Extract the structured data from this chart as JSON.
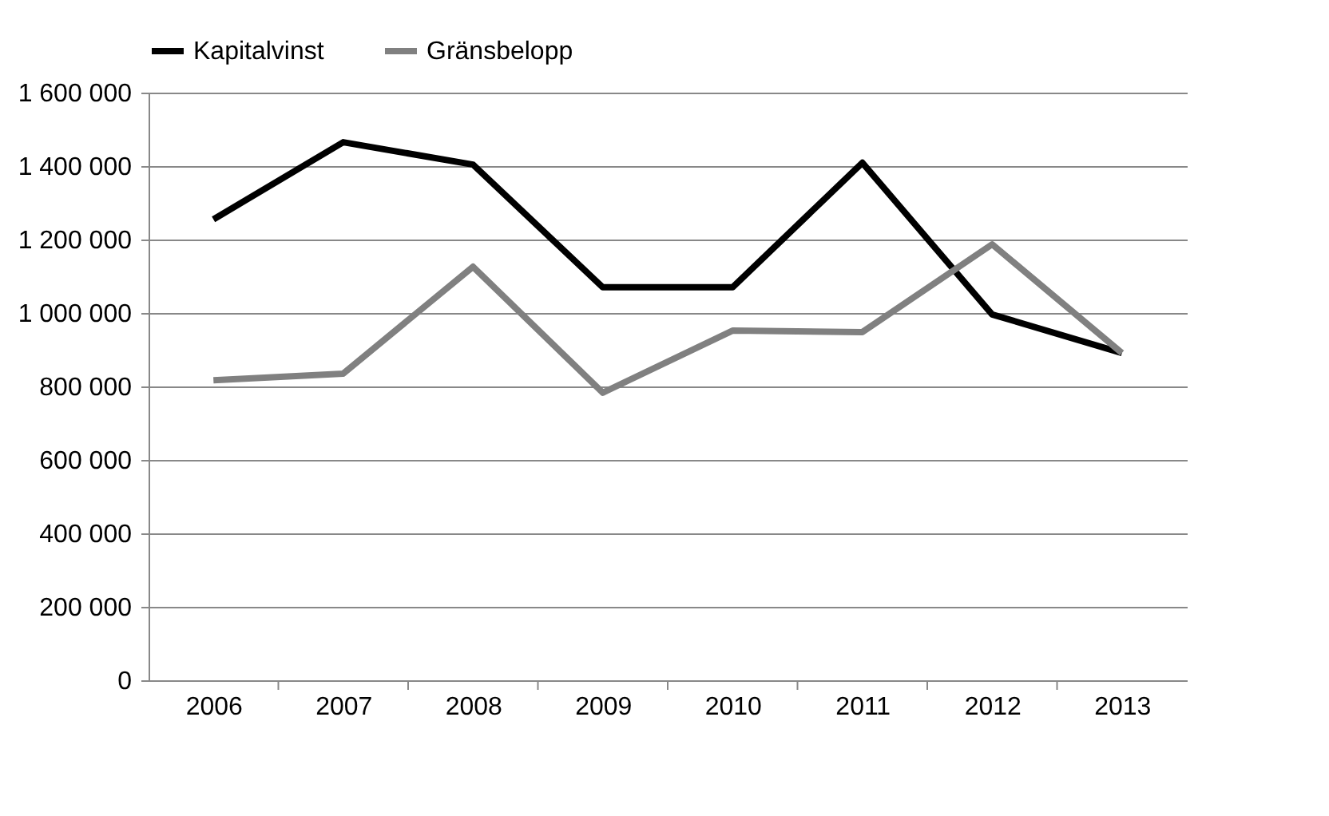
{
  "chart_data": {
    "type": "line",
    "categories": [
      "2006",
      "2007",
      "2008",
      "2009",
      "2010",
      "2011",
      "2012",
      "2013"
    ],
    "series": [
      {
        "name": "Kapitalvinst",
        "color": "#000000",
        "values": [
          1255000,
          1465000,
          1404000,
          1070000,
          1070000,
          1409000,
          996000,
          891000
        ]
      },
      {
        "name": "Gränsbelopp",
        "color": "#808080",
        "values": [
          817000,
          835000,
          1126000,
          783000,
          952000,
          948000,
          1187000,
          891000
        ]
      }
    ],
    "ylim": [
      0,
      1600000
    ],
    "yticks": [
      0,
      {
        "value": 200000,
        "label": "200 000"
      },
      {
        "value": 400000,
        "label": "400 000"
      },
      {
        "value": 600000,
        "label": "600 000"
      },
      {
        "value": 800000,
        "label": "800 000"
      },
      {
        "value": 1000000,
        "label": "1 000 000"
      },
      {
        "value": 1200000,
        "label": "1 200 000"
      },
      {
        "value": 1400000,
        "label": "1 400 000"
      },
      {
        "value": 1600000,
        "label": "1 600 000"
      }
    ],
    "grid": "y",
    "legend": "top",
    "marker": "none",
    "line_style": "solid"
  }
}
